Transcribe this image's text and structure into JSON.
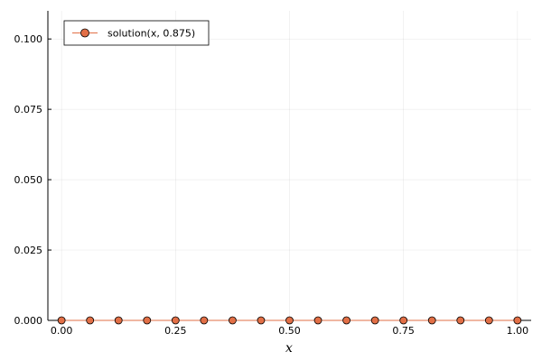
{
  "chart_data": {
    "type": "scatter",
    "xlabel": "x",
    "ylabel": "",
    "title": "",
    "xlim": [
      -0.03,
      1.03
    ],
    "ylim": [
      0,
      0.11
    ],
    "x_ticks": [
      0.0,
      0.25,
      0.5,
      0.75,
      1.0
    ],
    "x_tick_labels": [
      "0.00",
      "0.25",
      "0.50",
      "0.75",
      "1.00"
    ],
    "y_ticks": [
      0.0,
      0.025,
      0.05,
      0.075,
      0.1
    ],
    "y_tick_labels": [
      "0.000",
      "0.025",
      "0.050",
      "0.075",
      "0.100"
    ],
    "grid": true,
    "legend_position": "top-left",
    "series": [
      {
        "name": "solution(x, 0.875)",
        "color": "#e26f46",
        "marker": "circle",
        "x": [
          0.0,
          0.0625,
          0.125,
          0.1875,
          0.25,
          0.3125,
          0.375,
          0.4375,
          0.5,
          0.5625,
          0.625,
          0.6875,
          0.75,
          0.8125,
          0.875,
          0.9375,
          1.0
        ],
        "y": [
          0,
          0,
          0,
          0,
          0,
          0,
          0,
          0,
          0,
          0,
          0,
          0,
          0,
          0,
          0,
          0,
          0
        ]
      }
    ]
  }
}
